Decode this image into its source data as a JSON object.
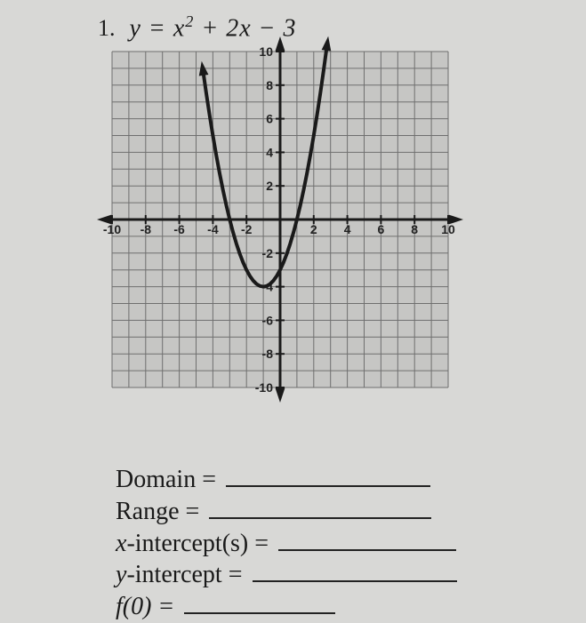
{
  "problem": {
    "number": "1.",
    "equation_html": "y = x<sup>2</sup> + 2x − 3"
  },
  "graph": {
    "type": "parabola",
    "xlim": [
      -10,
      10
    ],
    "ylim": [
      -10,
      10
    ],
    "tick_step": 2,
    "grid_step": 1,
    "grid_color": "#6f6f6f",
    "axis_color": "#1a1a1a",
    "curve_color": "#1a1a1a",
    "curve_width": 4,
    "background_color": "#c6c6c4",
    "x_ticks": [
      -10,
      -8,
      -6,
      -4,
      -2,
      2,
      4,
      6,
      8,
      10
    ],
    "y_ticks": [
      -10,
      -8,
      -6,
      -4,
      -2,
      2,
      4,
      6,
      8,
      10
    ],
    "tick_fontsize": 14,
    "func": {
      "a": 1,
      "b": 2,
      "c": -3
    },
    "curve_points": [
      [
        -4.6,
        8.96
      ],
      [
        -4.4,
        7.56
      ],
      [
        -4.2,
        6.24
      ],
      [
        -4.0,
        5.0
      ],
      [
        -3.8,
        3.84
      ],
      [
        -3.6,
        2.76
      ],
      [
        -3.4,
        1.76
      ],
      [
        -3.2,
        0.84
      ],
      [
        -3.0,
        0.0
      ],
      [
        -2.8,
        -0.76
      ],
      [
        -2.6,
        -1.44
      ],
      [
        -2.4,
        -2.04
      ],
      [
        -2.2,
        -2.56
      ],
      [
        -2.0,
        -3.0
      ],
      [
        -1.8,
        -3.36
      ],
      [
        -1.6,
        -3.64
      ],
      [
        -1.4,
        -3.84
      ],
      [
        -1.2,
        -3.96
      ],
      [
        -1.0,
        -4.0
      ],
      [
        -0.8,
        -3.96
      ],
      [
        -0.6,
        -3.84
      ],
      [
        -0.4,
        -3.64
      ],
      [
        -0.2,
        -3.36
      ],
      [
        0.0,
        -3.0
      ],
      [
        0.2,
        -2.56
      ],
      [
        0.4,
        -2.04
      ],
      [
        0.6,
        -1.44
      ],
      [
        0.8,
        -0.76
      ],
      [
        1.0,
        0.0
      ],
      [
        1.2,
        0.84
      ],
      [
        1.4,
        1.76
      ],
      [
        1.6,
        2.76
      ],
      [
        1.8,
        3.84
      ],
      [
        2.0,
        5.0
      ],
      [
        2.2,
        6.24
      ],
      [
        2.4,
        7.56
      ],
      [
        2.6,
        8.96
      ],
      [
        2.8,
        10.44
      ]
    ]
  },
  "answers": {
    "domain_label": "Domain =",
    "range_label": "Range =",
    "xint_label_pre": "x",
    "xint_label_post": "-intercept(s) =",
    "yint_label_pre": "y",
    "yint_label_post": "-intercept =",
    "f0_label": "f(0) =",
    "blank_widths": {
      "domain": 230,
      "range": 250,
      "xint": 200,
      "yint": 230,
      "f0": 170
    }
  }
}
